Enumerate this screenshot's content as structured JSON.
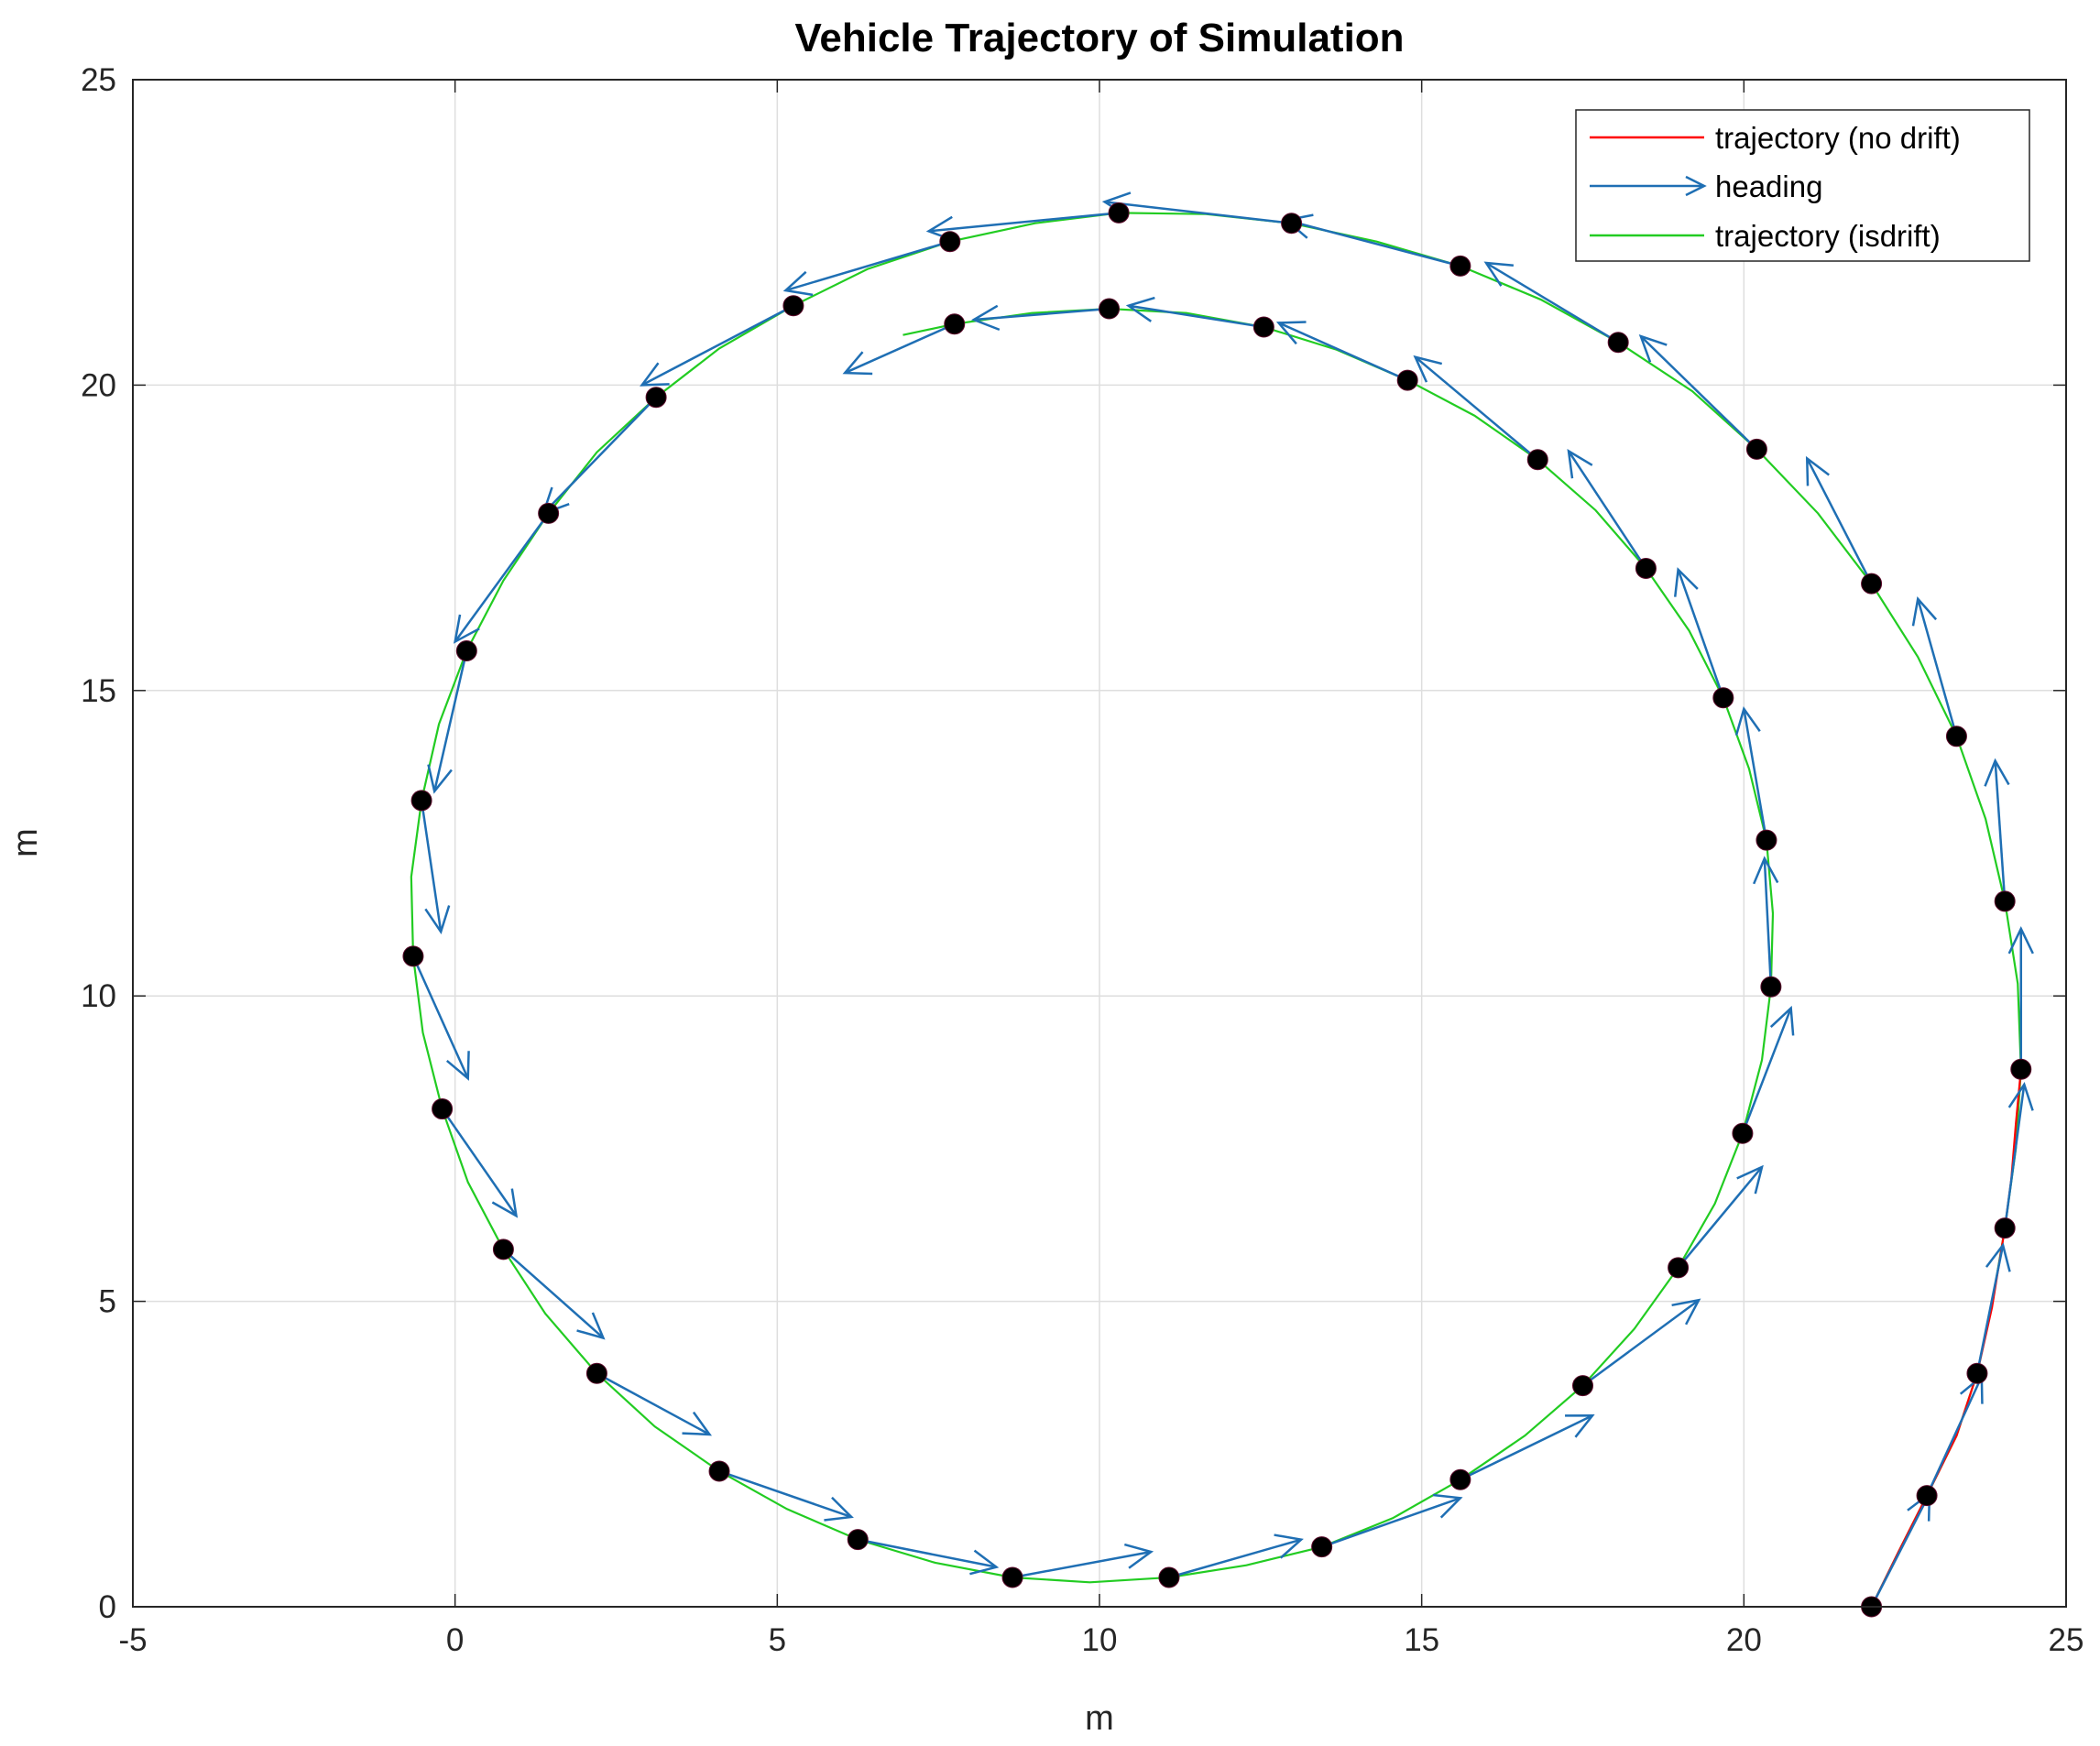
{
  "chart_data": {
    "type": "line",
    "title": "Vehicle Trajectory of Simulation",
    "xlabel": "m",
    "ylabel": "m",
    "xlim": [
      -5,
      25
    ],
    "ylim": [
      0,
      25
    ],
    "xticks": [
      "-5",
      "0",
      "5",
      "10",
      "15",
      "20",
      "25"
    ],
    "yticks": [
      "0",
      "5",
      "10",
      "15",
      "20",
      "25"
    ],
    "grid": true,
    "legend_position": "top-right",
    "colors": {
      "no_drift": "#ff0000",
      "heading": "#1f6fb4",
      "isdrift": "#22cc22",
      "marker": "#000000"
    },
    "series": [
      {
        "name": "trajectory (no drift)",
        "style": "line",
        "x": [
          21.98,
          22.4,
          22.84,
          23.3,
          23.62,
          23.85,
          24.05,
          24.15,
          24.22,
          24.3
        ],
        "y": [
          0.0,
          0.9,
          1.82,
          2.8,
          3.82,
          4.9,
          6.2,
          7.0,
          7.9,
          8.8
        ]
      },
      {
        "name": "heading",
        "style": "quiver",
        "points": [
          [
            21.98,
            0.0
          ],
          [
            22.84,
            1.82
          ],
          [
            23.62,
            3.82
          ],
          [
            24.05,
            6.2
          ],
          [
            24.3,
            8.8
          ],
          [
            24.05,
            11.55
          ],
          [
            23.3,
            14.25
          ],
          [
            21.98,
            16.75
          ],
          [
            20.2,
            18.95
          ],
          [
            18.05,
            20.7
          ],
          [
            15.6,
            21.95
          ],
          [
            12.98,
            22.65
          ],
          [
            10.3,
            22.82
          ],
          [
            7.68,
            22.35
          ],
          [
            5.25,
            21.3
          ],
          [
            3.12,
            19.8
          ],
          [
            1.45,
            17.9
          ],
          [
            0.18,
            15.65
          ],
          [
            -0.52,
            13.2
          ],
          [
            -0.65,
            10.65
          ],
          [
            -0.2,
            8.15
          ],
          [
            0.75,
            5.85
          ],
          [
            2.2,
            3.82
          ],
          [
            4.1,
            2.22
          ],
          [
            6.25,
            1.1
          ],
          [
            8.65,
            0.48
          ],
          [
            11.08,
            0.48
          ],
          [
            13.45,
            0.98
          ],
          [
            15.6,
            2.08
          ],
          [
            17.5,
            3.62
          ],
          [
            18.98,
            5.55
          ],
          [
            19.98,
            7.75
          ],
          [
            20.42,
            10.15
          ],
          [
            20.35,
            12.55
          ],
          [
            19.68,
            14.88
          ],
          [
            18.48,
            17.0
          ],
          [
            16.8,
            18.78
          ],
          [
            14.78,
            20.08
          ],
          [
            12.55,
            20.95
          ],
          [
            10.15,
            21.25
          ],
          [
            7.75,
            21.0
          ]
        ],
        "vectors": [
          [
            0.9,
            1.85
          ],
          [
            0.85,
            1.95
          ],
          [
            0.4,
            2.1
          ],
          [
            0.3,
            2.35
          ],
          [
            0.0,
            2.3
          ],
          [
            -0.15,
            2.3
          ],
          [
            -0.6,
            2.25
          ],
          [
            -1.0,
            2.05
          ],
          [
            -1.8,
            1.85
          ],
          [
            -2.05,
            1.3
          ],
          [
            -2.7,
            0.75
          ],
          [
            -2.9,
            0.35
          ],
          [
            -2.95,
            -0.3
          ],
          [
            -2.55,
            -0.8
          ],
          [
            -2.35,
            -1.3
          ],
          [
            -1.75,
            -1.9
          ],
          [
            -1.45,
            -2.1
          ],
          [
            -0.5,
            -2.3
          ],
          [
            0.3,
            -2.15
          ],
          [
            0.85,
            -2.0
          ],
          [
            1.15,
            -1.75
          ],
          [
            1.55,
            -1.45
          ],
          [
            1.75,
            -1.0
          ],
          [
            2.05,
            -0.75
          ],
          [
            2.15,
            -0.45
          ],
          [
            2.15,
            0.42
          ],
          [
            2.05,
            0.62
          ],
          [
            2.15,
            0.8
          ],
          [
            2.05,
            1.05
          ],
          [
            1.8,
            1.4
          ],
          [
            1.3,
            1.65
          ],
          [
            0.75,
            2.05
          ],
          [
            -0.1,
            2.1
          ],
          [
            -0.35,
            2.15
          ],
          [
            -0.7,
            2.1
          ],
          [
            -1.2,
            1.92
          ],
          [
            -1.9,
            1.68
          ],
          [
            -2.0,
            0.94
          ],
          [
            -2.1,
            0.35
          ],
          [
            -2.1,
            -0.18
          ],
          [
            -1.7,
            -0.8
          ]
        ]
      },
      {
        "name": "trajectory (isdrift)",
        "style": "curve",
        "points": [
          [
            21.98,
            0.0
          ],
          [
            22.4,
            0.9
          ],
          [
            22.84,
            1.82
          ],
          [
            23.3,
            2.8
          ],
          [
            23.62,
            3.82
          ],
          [
            23.85,
            4.95
          ],
          [
            24.05,
            6.2
          ],
          [
            24.22,
            7.5
          ],
          [
            24.3,
            8.8
          ],
          [
            24.25,
            10.2
          ],
          [
            24.05,
            11.55
          ],
          [
            23.75,
            12.9
          ],
          [
            23.3,
            14.25
          ],
          [
            22.7,
            15.55
          ],
          [
            21.98,
            16.75
          ],
          [
            21.15,
            17.9
          ],
          [
            20.2,
            18.95
          ],
          [
            19.2,
            19.9
          ],
          [
            18.05,
            20.7
          ],
          [
            16.85,
            21.4
          ],
          [
            15.6,
            21.95
          ],
          [
            14.3,
            22.35
          ],
          [
            12.98,
            22.65
          ],
          [
            11.65,
            22.8
          ],
          [
            10.3,
            22.82
          ],
          [
            9.0,
            22.65
          ],
          [
            7.68,
            22.35
          ],
          [
            6.4,
            21.9
          ],
          [
            5.25,
            21.3
          ],
          [
            4.1,
            20.6
          ],
          [
            3.12,
            19.8
          ],
          [
            2.2,
            18.9
          ],
          [
            1.45,
            17.9
          ],
          [
            0.75,
            16.8
          ],
          [
            0.18,
            15.65
          ],
          [
            -0.25,
            14.45
          ],
          [
            -0.52,
            13.2
          ],
          [
            -0.68,
            11.95
          ],
          [
            -0.65,
            10.65
          ],
          [
            -0.5,
            9.4
          ],
          [
            -0.2,
            8.15
          ],
          [
            0.2,
            6.95
          ],
          [
            0.75,
            5.85
          ],
          [
            1.4,
            4.8
          ],
          [
            2.2,
            3.82
          ],
          [
            3.1,
            2.95
          ],
          [
            4.1,
            2.22
          ],
          [
            5.15,
            1.6
          ],
          [
            6.25,
            1.1
          ],
          [
            7.45,
            0.72
          ],
          [
            8.65,
            0.48
          ],
          [
            9.85,
            0.4
          ],
          [
            11.08,
            0.48
          ],
          [
            12.28,
            0.68
          ],
          [
            13.45,
            0.98
          ],
          [
            14.55,
            1.45
          ],
          [
            15.6,
            2.08
          ],
          [
            16.6,
            2.8
          ],
          [
            17.5,
            3.62
          ],
          [
            18.3,
            4.55
          ],
          [
            18.98,
            5.55
          ],
          [
            19.55,
            6.6
          ],
          [
            19.98,
            7.75
          ],
          [
            20.28,
            8.95
          ],
          [
            20.42,
            10.15
          ],
          [
            20.45,
            11.35
          ],
          [
            20.35,
            12.55
          ],
          [
            20.08,
            13.72
          ],
          [
            19.68,
            14.88
          ],
          [
            19.15,
            15.98
          ],
          [
            18.48,
            17.0
          ],
          [
            17.7,
            17.95
          ],
          [
            16.8,
            18.78
          ],
          [
            15.82,
            19.5
          ],
          [
            14.78,
            20.08
          ],
          [
            13.68,
            20.58
          ],
          [
            12.55,
            20.95
          ],
          [
            11.35,
            21.18
          ],
          [
            10.15,
            21.25
          ],
          [
            8.95,
            21.18
          ],
          [
            7.75,
            21.0
          ],
          [
            6.95,
            20.82
          ]
        ]
      }
    ],
    "markers": [
      [
        21.98,
        0.0
      ],
      [
        22.84,
        1.82
      ],
      [
        23.62,
        3.82
      ],
      [
        24.05,
        6.2
      ],
      [
        24.3,
        8.8
      ],
      [
        24.05,
        11.55
      ],
      [
        23.3,
        14.25
      ],
      [
        21.98,
        16.75
      ],
      [
        20.2,
        18.95
      ],
      [
        18.05,
        20.7
      ],
      [
        15.6,
        21.95
      ],
      [
        12.98,
        22.65
      ],
      [
        10.3,
        22.82
      ],
      [
        7.68,
        22.35
      ],
      [
        5.25,
        21.3
      ],
      [
        3.12,
        19.8
      ],
      [
        1.45,
        17.9
      ],
      [
        0.18,
        15.65
      ],
      [
        -0.52,
        13.2
      ],
      [
        -0.65,
        10.65
      ],
      [
        -0.2,
        8.15
      ],
      [
        0.75,
        5.85
      ],
      [
        2.2,
        3.82
      ],
      [
        4.1,
        2.22
      ],
      [
        6.25,
        1.1
      ],
      [
        8.65,
        0.48
      ],
      [
        11.08,
        0.48
      ],
      [
        13.45,
        0.98
      ],
      [
        15.6,
        2.08
      ],
      [
        17.5,
        3.62
      ],
      [
        18.98,
        5.55
      ],
      [
        19.98,
        7.75
      ],
      [
        20.42,
        10.15
      ],
      [
        20.35,
        12.55
      ],
      [
        19.68,
        14.88
      ],
      [
        18.48,
        17.0
      ],
      [
        16.8,
        18.78
      ],
      [
        14.78,
        20.08
      ],
      [
        12.55,
        20.95
      ],
      [
        10.15,
        21.25
      ],
      [
        7.75,
        21.0
      ]
    ]
  }
}
